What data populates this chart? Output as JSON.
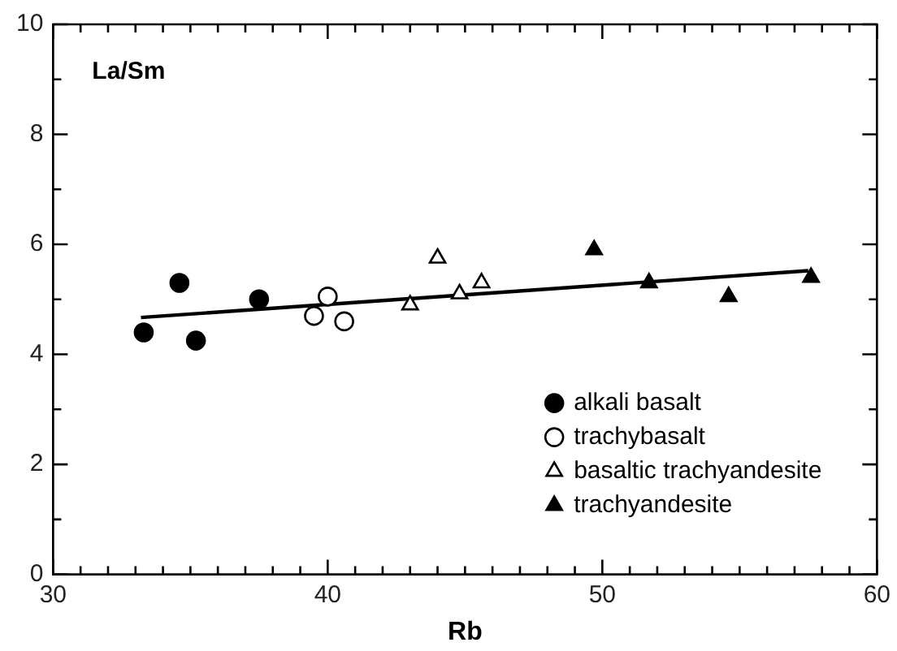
{
  "chart_data": {
    "type": "scatter",
    "title": "La/Sm",
    "xlabel": "Rb",
    "xlim": [
      30,
      60
    ],
    "xticks": [
      30,
      {
        "value": 31,
        "label": null
      },
      {
        "value": 32,
        "label": null
      },
      {
        "value": 33,
        "label": null
      },
      {
        "value": 34,
        "label": null
      },
      {
        "value": 35,
        "label": null
      },
      {
        "value": 36,
        "label": null
      },
      {
        "value": 37,
        "label": null
      },
      {
        "value": 38,
        "label": null
      },
      {
        "value": 39,
        "label": null
      },
      40,
      {
        "value": 41,
        "label": null
      },
      {
        "value": 42,
        "label": null
      },
      {
        "value": 43,
        "label": null
      },
      {
        "value": 44,
        "label": null
      },
      {
        "value": 45,
        "label": null
      },
      {
        "value": 46,
        "label": null
      },
      {
        "value": 47,
        "label": null
      },
      {
        "value": 48,
        "label": null
      },
      {
        "value": 49,
        "label": null
      },
      50,
      {
        "value": 51,
        "label": null
      },
      {
        "value": 52,
        "label": null
      },
      {
        "value": 53,
        "label": null
      },
      {
        "value": 54,
        "label": null
      },
      {
        "value": 55,
        "label": null
      },
      {
        "value": 56,
        "label": null
      },
      {
        "value": 57,
        "label": null
      },
      {
        "value": 58,
        "label": null
      },
      {
        "value": 59,
        "label": null
      },
      60
    ],
    "ylim": [
      0,
      10
    ],
    "yticks": [
      0,
      {
        "value": 1,
        "label": null
      },
      2,
      {
        "value": 3,
        "label": null
      },
      4,
      {
        "value": 5,
        "label": null
      },
      6,
      {
        "value": 7,
        "label": null
      },
      8,
      {
        "value": 9,
        "label": null
      },
      10
    ],
    "grid": false,
    "legend": "bottom right",
    "series": [
      {
        "name": "alkali basalt",
        "color": "#000000",
        "marker": "circle",
        "x": [
          33.3,
          34.6,
          35.2,
          37.5
        ],
        "values": [
          4.4,
          5.3,
          4.25,
          5.0
        ]
      },
      {
        "name": "trachybasalt",
        "color": "#ffffff",
        "marker": "circle",
        "x": [
          39.5,
          40.0,
          40.6
        ],
        "values": [
          4.7,
          5.05,
          4.6
        ]
      },
      {
        "name": "basaltic trachyandesite",
        "color": "#ffffff",
        "marker": "triangle",
        "x": [
          43.0,
          44.0,
          44.8,
          45.6
        ],
        "values": [
          4.9,
          5.75,
          5.1,
          5.3
        ]
      },
      {
        "name": "trachyandesite",
        "color": "#000000",
        "marker": "triangle",
        "x": [
          49.7,
          51.7,
          54.6,
          57.6
        ],
        "values": [
          5.9,
          5.3,
          5.05,
          5.4
        ]
      },
      {
        "type": "line",
        "color": "#000000",
        "marker": "none",
        "x": [
          33.2,
          57.5
        ],
        "values": [
          4.67,
          5.52
        ]
      }
    ]
  }
}
